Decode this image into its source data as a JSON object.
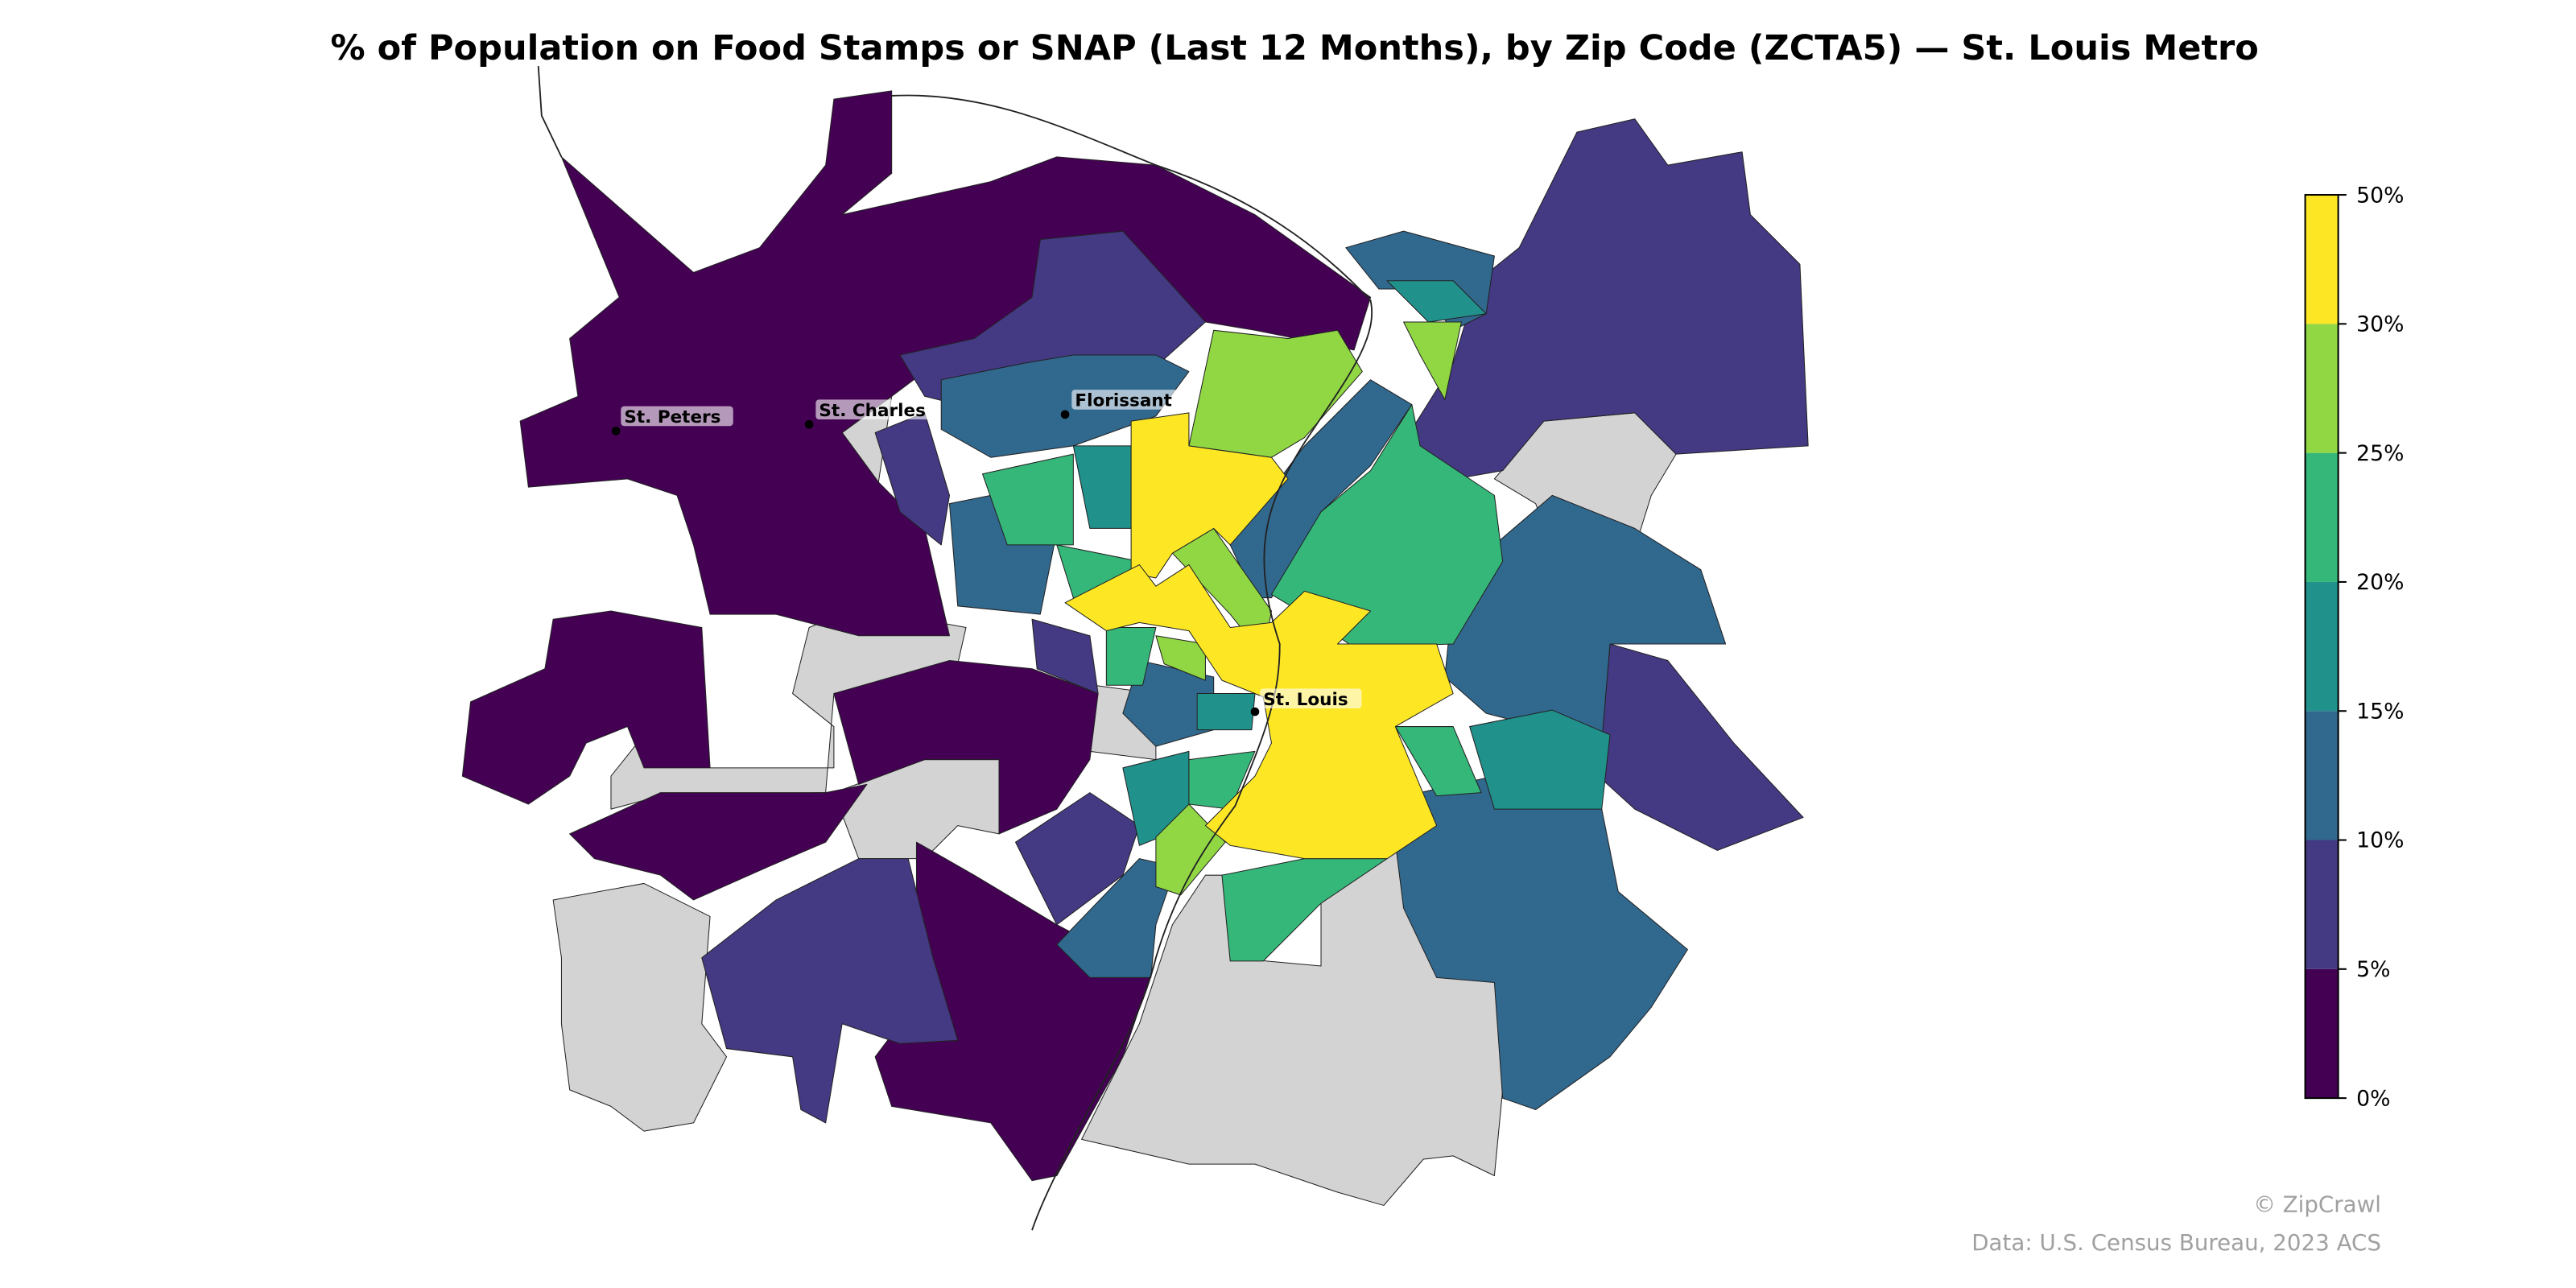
{
  "title": "% of Population on Food Stamps or SNAP (Last 12 Months), by Zip Code (ZCTA5) — St. Louis Metro",
  "colorbar": {
    "bins": [
      {
        "label": "0%",
        "color": "#440154"
      },
      {
        "label": "5%",
        "color": "#443983"
      },
      {
        "label": "10%",
        "color": "#31688e"
      },
      {
        "label": "15%",
        "color": "#21918c"
      },
      {
        "label": "20%",
        "color": "#35b779"
      },
      {
        "label": "25%",
        "color": "#90d743"
      },
      {
        "label": "30%",
        "color": "#fde725"
      }
    ],
    "top_label": "50%",
    "no_data_color": "#d3d3d3"
  },
  "cities": [
    {
      "name": "St. Peters"
    },
    {
      "name": "St. Charles"
    },
    {
      "name": "Florissant"
    },
    {
      "name": "St. Louis"
    }
  ],
  "footer": {
    "credit": "© ZipCrawl",
    "source": "Data: U.S. Census Bureau, 2023 ACS"
  }
}
